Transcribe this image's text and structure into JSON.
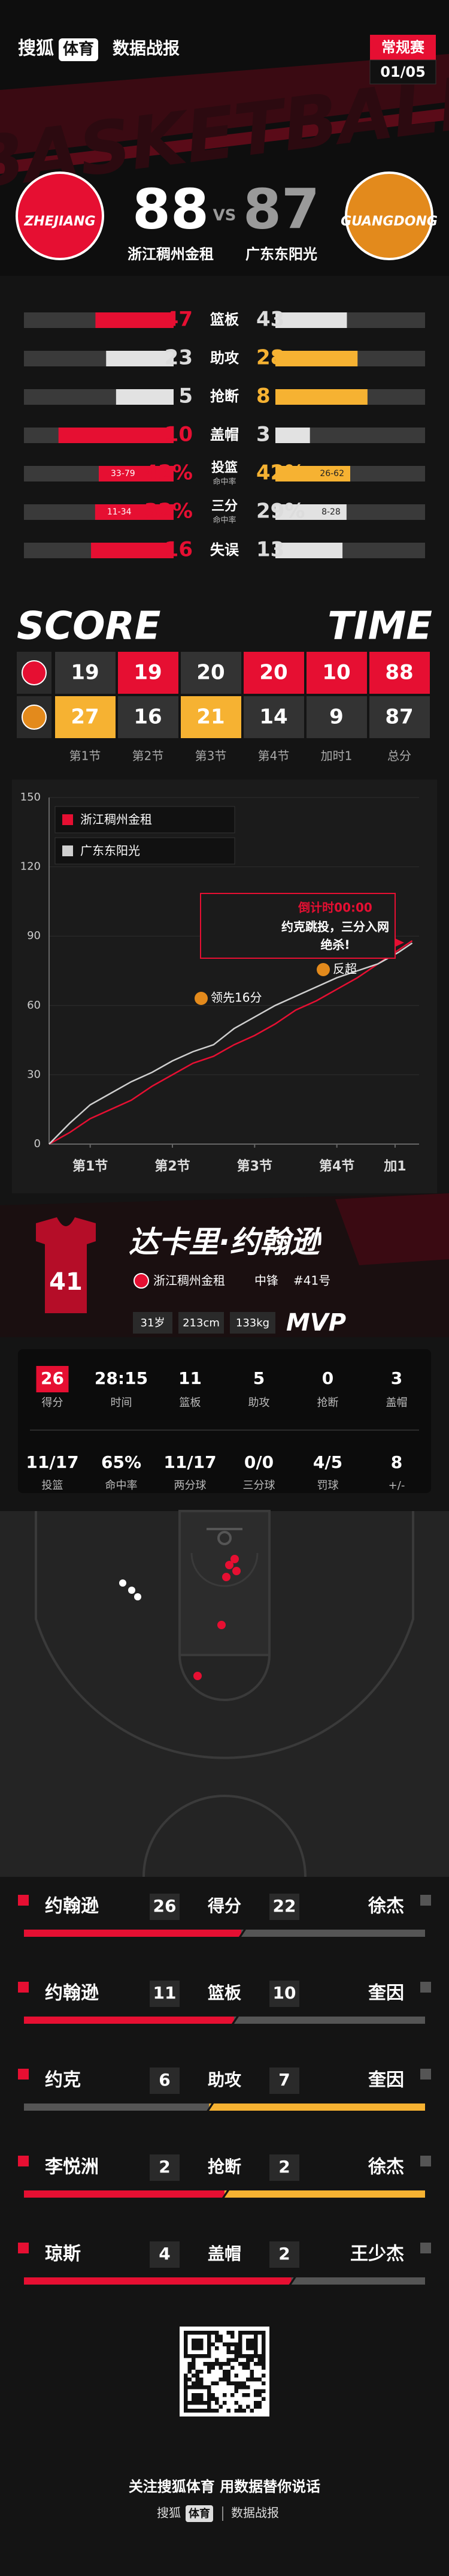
{
  "header": {
    "logo_brand": "搜狐",
    "logo_sub": "体育",
    "section": "数据战报",
    "badge": "常规赛",
    "date": "01/05",
    "bg_text": "BASKETBALL"
  },
  "match": {
    "home": {
      "name": "浙江稠州金租",
      "score": 88,
      "logo_text": "ZHEJIANG"
    },
    "vs": "VS",
    "away": {
      "name": "广东东阳光",
      "score": 87,
      "logo_text": "GUANGDONG"
    }
  },
  "team_stats": [
    {
      "label": "篮板",
      "home": 47,
      "away": 43
    },
    {
      "label": "助攻",
      "home": 23,
      "away": 28
    },
    {
      "label": "抢断",
      "home": 5,
      "away": 8
    },
    {
      "label": "盖帽",
      "home": 10,
      "away": 3
    },
    {
      "label": "投篮",
      "sublabel": "命中率",
      "home": 42,
      "home_label": "42%",
      "away": 42,
      "away_label": "42%",
      "home_detail": "33-79",
      "away_detail": "26-62"
    },
    {
      "label": "三分",
      "sublabel": "命中率",
      "home": 32,
      "home_label": "32%",
      "away": 29,
      "away_label": "29%",
      "home_detail": "11-34",
      "away_detail": "8-28"
    },
    {
      "label": "失误",
      "home": 16,
      "away": 13
    }
  ],
  "score_table": {
    "title_left": "SCORE",
    "title_right": "TIME",
    "columns": [
      "第1节",
      "第2节",
      "第3节",
      "第4节",
      "加时1",
      "总分"
    ],
    "home": [
      19,
      19,
      20,
      20,
      10,
      88
    ],
    "away": [
      27,
      16,
      21,
      14,
      9,
      87
    ]
  },
  "chart_data": {
    "type": "line",
    "x": [
      0,
      3,
      6,
      9,
      12,
      15,
      18,
      21,
      24,
      27,
      30,
      33,
      36,
      39,
      42,
      45,
      48,
      51,
      53
    ],
    "series": [
      {
        "name": "浙江稠州金租",
        "color": "#e60f32",
        "values": [
          0,
          5,
          11,
          15,
          19,
          25,
          30,
          35,
          38,
          43,
          47,
          52,
          58,
          62,
          67,
          72,
          78,
          84,
          88
        ]
      },
      {
        "name": "广东东阳光",
        "color": "#cfcfcf",
        "values": [
          0,
          9,
          17,
          22,
          27,
          31,
          36,
          40,
          43,
          50,
          55,
          60,
          64,
          68,
          72,
          75,
          78,
          83,
          87
        ]
      }
    ],
    "xlim": [
      0,
      54
    ],
    "xticks": [
      {
        "value": 6,
        "label": "第1节"
      },
      {
        "value": 18,
        "label": "第2节"
      },
      {
        "value": 30,
        "label": "第3节"
      },
      {
        "value": 42,
        "label": "第4节"
      },
      {
        "value": 50.5,
        "label": "加1"
      }
    ],
    "ylim": [
      0,
      150
    ],
    "yticks": [
      0,
      30,
      60,
      90,
      120,
      150
    ],
    "annotations": {
      "countdown": "倒计时00:00",
      "play": "约克跳投，三分入网",
      "result": "绝杀!",
      "lead": "领先16分",
      "overtake": "反超"
    }
  },
  "player": {
    "name": "达卡里·约翰逊",
    "team": "浙江稠州金租",
    "position": "中锋",
    "number": "#41号",
    "jersey_number": "41",
    "age": "31岁",
    "height": "213cm",
    "weight": "133kg",
    "award": "MVP",
    "stats": [
      {
        "value": 26,
        "label": "得分"
      },
      {
        "value": "28:15",
        "label": "时间"
      },
      {
        "value": 11,
        "label": "篮板"
      },
      {
        "value": 5,
        "label": "助攻"
      },
      {
        "value": 0,
        "label": "抢断"
      },
      {
        "value": 3,
        "label": "盖帽"
      },
      {
        "value": "11/17",
        "label": "投篮"
      },
      {
        "value": "65%",
        "label": "命中率"
      },
      {
        "value": "11/17",
        "label": "两分球"
      },
      {
        "value": "0/0",
        "label": "三分球"
      },
      {
        "value": "4/5",
        "label": "罚球"
      },
      {
        "value": 8,
        "label": "+/-"
      }
    ]
  },
  "matchups": [
    {
      "home_player": "约翰逊",
      "home_value": 26,
      "label": "得分",
      "away_value": 22,
      "away_player": "徐杰"
    },
    {
      "home_player": "约翰逊",
      "home_value": 11,
      "label": "篮板",
      "away_value": 10,
      "away_player": "奎因"
    },
    {
      "home_player": "约克",
      "home_value": 6,
      "label": "助攻",
      "away_value": 7,
      "away_player": "奎因"
    },
    {
      "home_player": "李悦洲",
      "home_value": 2,
      "label": "抢断",
      "away_value": 2,
      "away_player": "徐杰"
    },
    {
      "home_player": "琼斯",
      "home_value": 4,
      "label": "盖帽",
      "away_value": 2,
      "away_player": "王少杰"
    }
  ],
  "footer": {
    "slogan": "关注搜狐体育 用数据替你说话",
    "brand": "搜狐",
    "brand_sub": "体育",
    "section": "数据战报"
  }
}
